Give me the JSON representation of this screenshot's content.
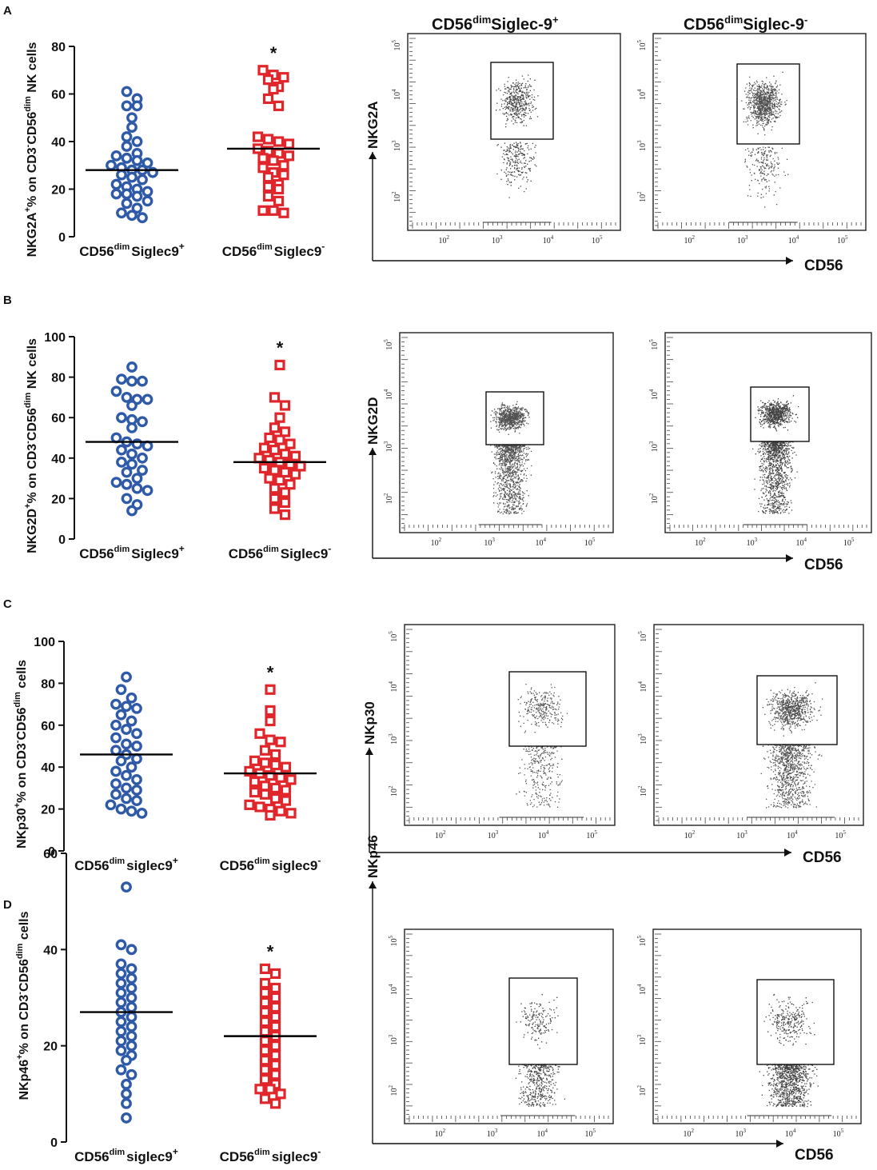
{
  "chart_data": [
    {
      "panel": "A",
      "type": "scatter",
      "ylabel": "NKG2A+% on CD3-CD56dim NK cells",
      "ylabel_parts": {
        "pre": "NKG2A",
        "sup1": "+",
        "mid": "% on CD3",
        "sup2": "-",
        "mid2": "CD56",
        "sup3": "dim",
        "post": " NK cells"
      },
      "ylim": [
        0,
        80
      ],
      "yticks": [
        0,
        20,
        40,
        60,
        80
      ],
      "groups": [
        {
          "name": "CD56dim Siglec9+",
          "label_base": "CD56",
          "label_sup": "dim",
          "label_rest": "Siglec9",
          "label_sign": "+",
          "marker": "circle",
          "color": "#2f5aa8",
          "mean": 28,
          "values": [
            61,
            58,
            55,
            55,
            50,
            46,
            42,
            40,
            38,
            35,
            34,
            33,
            32,
            31,
            30,
            29,
            28,
            28,
            27,
            26,
            25,
            24,
            22,
            21,
            20,
            19,
            18,
            18,
            17,
            15,
            14,
            12,
            10,
            9,
            8
          ]
        },
        {
          "name": "CD56dim Siglec9-",
          "label_base": "CD56",
          "label_sup": "dim",
          "label_rest": "Siglec9",
          "label_sign": "-",
          "marker": "square",
          "color": "#e0262a",
          "mean": 37,
          "significance": "*",
          "values": [
            70,
            68,
            67,
            66,
            63,
            62,
            58,
            55,
            42,
            41,
            40,
            39,
            37,
            36,
            35,
            34,
            33,
            32,
            30,
            29,
            27,
            26,
            25,
            22,
            21,
            20,
            17,
            15,
            11,
            11,
            10
          ]
        }
      ]
    },
    {
      "panel": "B",
      "type": "scatter",
      "ylabel_parts": {
        "pre": "NKG2D",
        "sup1": "+",
        "mid": "% on CD3",
        "sup2": "-",
        "mid2": "CD56",
        "sup3": "dim",
        "post": " NK cells"
      },
      "ylim": [
        0,
        100
      ],
      "yticks": [
        0,
        20,
        40,
        60,
        80,
        100
      ],
      "groups": [
        {
          "name": "CD56dim Siglec9+",
          "label_base": "CD56",
          "label_sup": "dim",
          "label_rest": "Siglec9",
          "label_sign": "+",
          "marker": "circle",
          "color": "#2f5aa8",
          "mean": 48,
          "values": [
            85,
            79,
            78,
            78,
            73,
            70,
            69,
            69,
            66,
            60,
            59,
            58,
            55,
            50,
            48,
            47,
            46,
            44,
            42,
            40,
            38,
            37,
            34,
            33,
            30,
            28,
            27,
            25,
            24,
            20,
            17,
            14
          ]
        },
        {
          "name": "CD56dim Siglec9-",
          "label_base": "CD56",
          "label_sup": "dim",
          "label_rest": "Siglec9",
          "label_sign": "-",
          "marker": "square",
          "color": "#e0262a",
          "mean": 38,
          "significance": "*",
          "values": [
            86,
            70,
            66,
            60,
            55,
            53,
            50,
            49,
            47,
            45,
            44,
            42,
            41,
            40,
            39,
            38,
            37,
            36,
            35,
            34,
            33,
            32,
            30,
            29,
            27,
            25,
            23,
            20,
            18,
            15,
            12
          ]
        }
      ]
    },
    {
      "panel": "C",
      "type": "scatter",
      "ylabel_parts": {
        "pre": "NKp30",
        "sup1": "+",
        "mid": "% on CD3",
        "sup2": "-",
        "mid2": "CD56",
        "sup3": "dim",
        "post": " cells"
      },
      "ylim": [
        0,
        100
      ],
      "yticks": [
        0,
        20,
        40,
        60,
        80,
        100
      ],
      "groups": [
        {
          "name": "CD56dim siglec9+",
          "label_base": "CD56",
          "label_sup": "dim",
          "label_rest": "siglec9",
          "label_sign": "+",
          "marker": "circle",
          "color": "#2f5aa8",
          "mean": 46,
          "values": [
            83,
            77,
            73,
            70,
            69,
            68,
            65,
            62,
            60,
            58,
            56,
            54,
            51,
            50,
            48,
            46,
            44,
            43,
            40,
            38,
            36,
            34,
            32,
            30,
            29,
            27,
            25,
            24,
            22,
            20,
            19,
            18
          ]
        },
        {
          "name": "CD56dim siglec9-",
          "label_base": "CD56",
          "label_sup": "dim",
          "label_rest": "siglec9",
          "label_sign": "-",
          "marker": "square",
          "color": "#e0262a",
          "mean": 37,
          "significance": "*",
          "values": [
            77,
            67,
            62,
            56,
            53,
            52,
            48,
            46,
            43,
            42,
            41,
            40,
            38,
            37,
            36,
            35,
            34,
            33,
            31,
            30,
            29,
            28,
            27,
            25,
            24,
            22,
            21,
            20,
            19,
            18,
            17
          ]
        }
      ]
    },
    {
      "panel": "D",
      "type": "scatter",
      "ylabel_parts": {
        "pre": "NKp46",
        "sup1": "+",
        "mid": "% on CD3",
        "sup2": "-",
        "mid2": "CD56",
        "sup3": "dim",
        "post": " cells"
      },
      "ylim": [
        0,
        60
      ],
      "yticks": [
        0,
        20,
        40,
        60
      ],
      "groups": [
        {
          "name": "CD56dim siglec9+",
          "label_base": "CD56",
          "label_sup": "dim",
          "label_rest": "siglec9",
          "label_sign": "+",
          "marker": "circle",
          "color": "#2f5aa8",
          "mean": 27,
          "values": [
            53,
            41,
            40,
            37,
            36,
            35,
            34,
            33,
            32,
            31,
            30,
            29,
            28,
            27,
            26,
            25,
            24,
            23,
            22,
            21,
            20,
            19,
            18,
            17,
            15,
            14,
            12,
            10,
            8,
            5
          ]
        },
        {
          "name": "CD56dim siglec9-",
          "label_base": "CD56",
          "label_sup": "dim",
          "label_rest": "siglec9",
          "label_sign": "-",
          "marker": "square",
          "color": "#e0262a",
          "mean": 22,
          "significance": "*",
          "values": [
            36,
            35,
            33,
            32,
            31,
            30,
            29,
            28,
            27,
            26,
            25,
            24,
            23,
            22,
            21,
            20,
            19,
            18,
            17,
            16,
            15,
            14,
            13,
            12,
            11,
            11,
            10,
            9,
            8
          ]
        }
      ]
    }
  ],
  "flow": {
    "column_titles": [
      {
        "base": "CD56",
        "sup": "dim",
        "rest": "Siglec-9",
        "sign": "+"
      },
      {
        "base": "CD56",
        "sup": "dim",
        "rest": "Siglec-9",
        "sign": "-"
      }
    ],
    "x_axis_label": "CD56",
    "decade_labels": [
      "10",
      "10",
      "10",
      "10"
    ],
    "decade_exps": [
      "2",
      "3",
      "4",
      "5"
    ],
    "panels": [
      {
        "panel": "A",
        "y_label": "NKG2A"
      },
      {
        "panel": "B",
        "y_label": "NKG2D"
      },
      {
        "panel": "C",
        "y_label": "NKp30"
      },
      {
        "panel": "D",
        "y_label": "NKp46"
      }
    ]
  },
  "colors": {
    "circle": "#2f5aa8",
    "square": "#e0262a",
    "axis": "#111111"
  }
}
